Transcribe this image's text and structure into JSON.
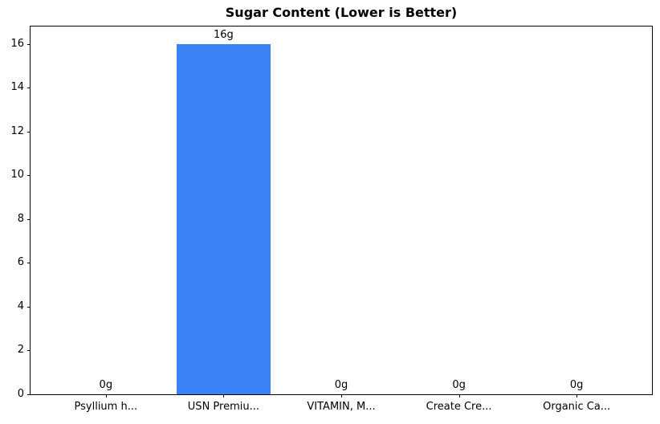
{
  "chart_data": {
    "type": "bar",
    "title": "Sugar Content (Lower is Better)",
    "categories": [
      "Psyllium h...",
      "USN Premiu...",
      "VITAMIN, M...",
      "Create Cre...",
      "Organic Ca..."
    ],
    "values": [
      0,
      16,
      0,
      0,
      0
    ],
    "value_labels": [
      "0g",
      "16g",
      "0g",
      "0g",
      "0g"
    ],
    "xlabel": "",
    "ylabel": "",
    "ylim": [
      0,
      16.8
    ],
    "yticks": [
      0,
      2,
      4,
      6,
      8,
      10,
      12,
      14,
      16
    ],
    "bar_color": "#3b82f6",
    "grid": false,
    "legend_position": "none"
  }
}
